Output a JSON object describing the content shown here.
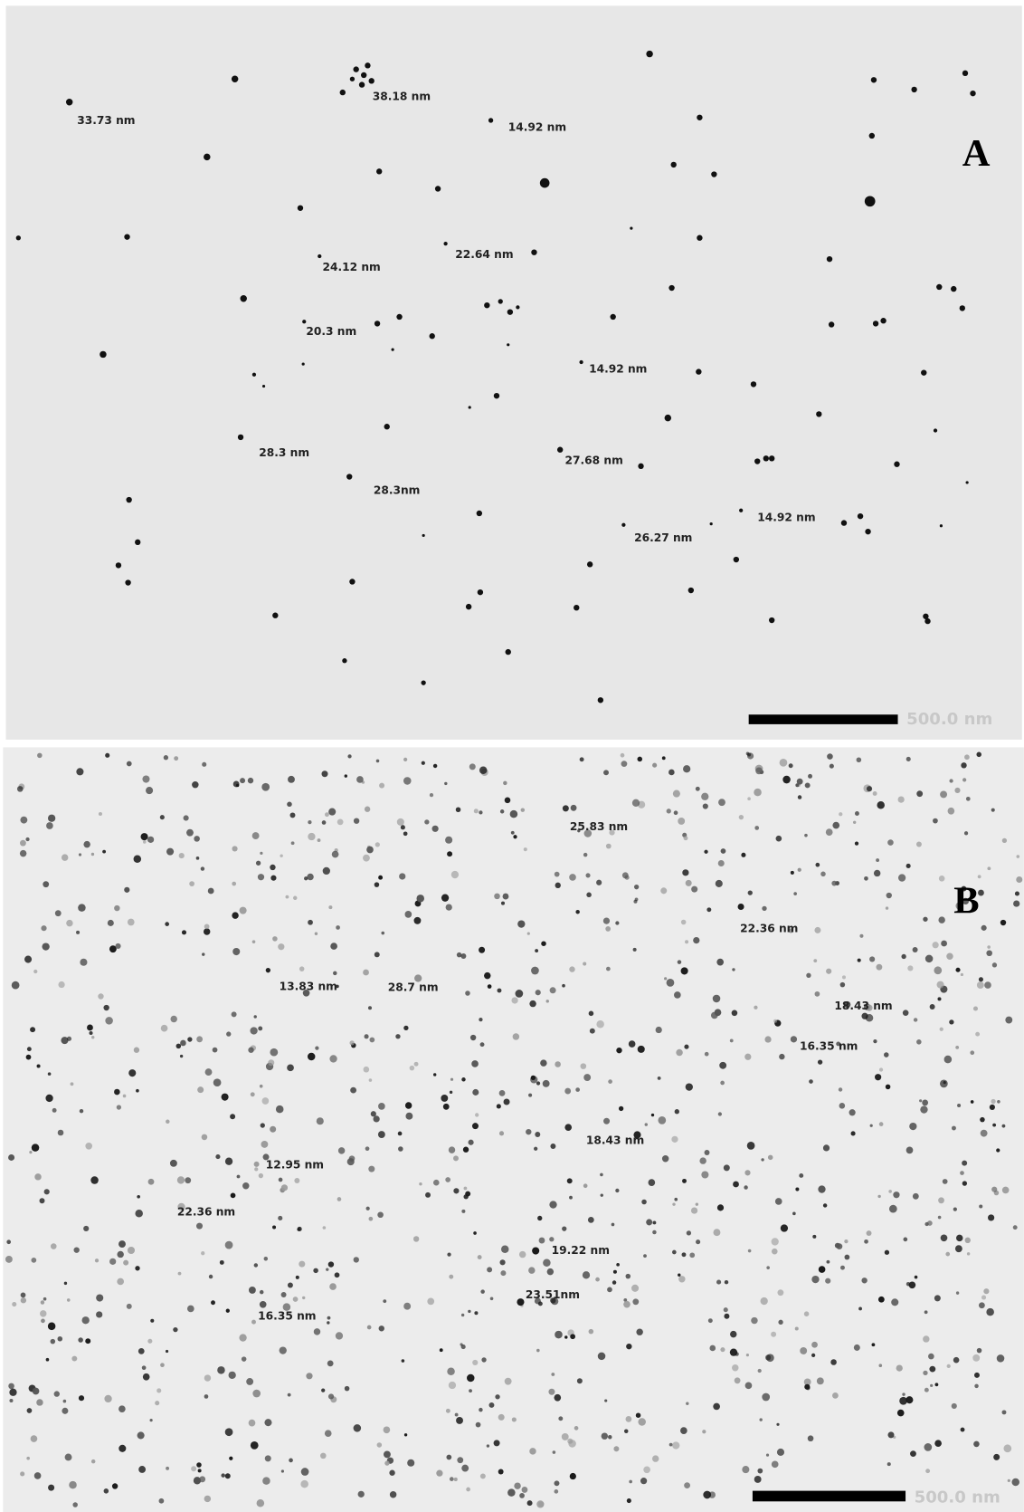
{
  "panels": [
    {
      "label": "A",
      "scale_bar": "500.0 nm",
      "annotations": [
        "33.73 nm",
        "38.18 nm",
        "14.92 nm",
        "24.12 nm",
        "22.64 nm",
        "20.3 nm",
        "14.92 nm",
        "28.3 nm",
        "28.3nm",
        "27.68 nm",
        "14.92 nm",
        "26.27 nm"
      ]
    },
    {
      "label": "B",
      "scale_bar": "500.0 nm",
      "annotations": [
        "25.83 nm",
        "22.36 nm",
        "13.83 nm",
        "28.7 nm",
        "18.43 nm",
        "16.35 nm",
        "18.43 nm",
        "12.95 nm",
        "22.36 nm",
        "19.22 nm",
        "23.51nm",
        "16.35 nm"
      ]
    }
  ]
}
